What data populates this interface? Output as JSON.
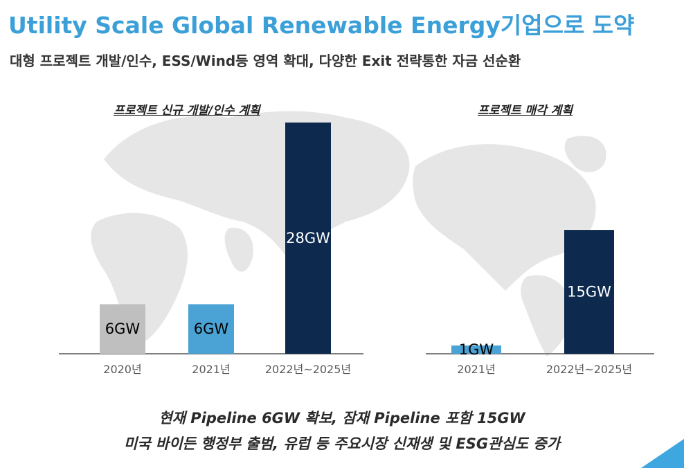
{
  "header": {
    "title": "Utility Scale Global Renewable Energy기업으로 도약",
    "subtitle": "대형 프로젝트 개발/인수, ESS/Wind등 영역 확대, 다양한 Exit 전략통한 자금 선순환"
  },
  "colors": {
    "title": "#3b9fd8",
    "gray_bar": "#bfbfbf",
    "light_blue_bar": "#4aa3d4",
    "navy_bar": "#0d2a4e",
    "corner_accent": "#3fa7df"
  },
  "chart_data": [
    {
      "type": "bar",
      "title": "프로젝트 신규 개발/인수 계획",
      "categories": [
        "2020년",
        "2021년",
        "2022년~2025년"
      ],
      "values": [
        6,
        6,
        28
      ],
      "value_labels": [
        "6GW",
        "6GW",
        "28GW"
      ],
      "unit": "GW",
      "ylim": [
        0,
        30
      ],
      "bar_colors": [
        "#bfbfbf",
        "#4aa3d4",
        "#0d2a4e"
      ],
      "label_colors": [
        "#000000",
        "#000000",
        "#ffffff"
      ]
    },
    {
      "type": "bar",
      "title": "프로젝트 매각 계획",
      "categories": [
        "2021년",
        "2022년~2025년"
      ],
      "values": [
        1,
        15
      ],
      "value_labels": [
        "1GW",
        "15GW"
      ],
      "unit": "GW",
      "ylim": [
        0,
        30
      ],
      "bar_colors": [
        "#4aa3d4",
        "#0d2a4e"
      ],
      "label_colors": [
        "#000000",
        "#ffffff"
      ]
    }
  ],
  "footer": {
    "line1": "현재 Pipeline 6GW 확보, 잠재 Pipeline 포함 15GW",
    "line2": "미국 바이든 행정부 출범, 유럽 등 주요시장 신재생 및 ESG관심도 증가"
  }
}
